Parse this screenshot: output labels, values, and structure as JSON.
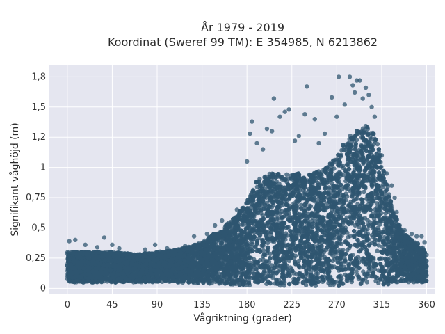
{
  "chart_data": {
    "type": "scatter",
    "title_line1": "År 1979 - 2019",
    "title_line2": "Koordinat (Sweref 99 TM): E 354985, N 6213862",
    "xlabel": "Vågriktning (grader)",
    "ylabel": "Signifikant våghöjd (m)",
    "xlim": [
      -18,
      368
    ],
    "ylim": [
      -0.05,
      1.85
    ],
    "x_ticks": [
      0,
      45,
      90,
      135,
      180,
      225,
      270,
      315,
      360
    ],
    "x_tick_labels": [
      "0",
      "45",
      "90",
      "135",
      "180",
      "225",
      "270",
      "315",
      "360"
    ],
    "y_ticks": [
      0,
      0.25,
      0.5,
      0.75,
      1.0,
      1.25,
      1.5,
      1.75
    ],
    "y_tick_labels": [
      "0",
      "0,25",
      "0,5",
      "0,75",
      "1",
      "1,2",
      "1,5",
      "1,8"
    ],
    "grid": true,
    "marker_color": "#2f5670",
    "background_color": "#e5e6f0",
    "envelope": {
      "x": [
        0,
        20,
        45,
        70,
        90,
        110,
        135,
        155,
        170,
        180,
        190,
        200,
        220,
        245,
        260,
        270,
        280,
        290,
        295,
        300,
        310,
        318,
        325,
        335,
        345,
        355,
        360
      ],
      "ymax": [
        0.3,
        0.3,
        0.3,
        0.28,
        0.3,
        0.32,
        0.38,
        0.5,
        0.6,
        0.72,
        0.9,
        0.95,
        0.95,
        0.95,
        1.0,
        1.1,
        1.25,
        1.3,
        1.32,
        1.35,
        1.25,
        0.95,
        0.7,
        0.48,
        0.4,
        0.35,
        0.3
      ],
      "ymin": [
        0.05,
        0.05,
        0.05,
        0.05,
        0.05,
        0.05,
        0.04,
        0.03,
        0.02,
        0.02,
        0.02,
        0.02,
        0.02,
        0.02,
        0.02,
        0.02,
        0.02,
        0.02,
        0.02,
        0.02,
        0.02,
        0.03,
        0.04,
        0.05,
        0.05,
        0.05,
        0.05
      ]
    },
    "outliers": [
      {
        "x": 2,
        "y": 0.39
      },
      {
        "x": 8,
        "y": 0.4
      },
      {
        "x": 18,
        "y": 0.36
      },
      {
        "x": 30,
        "y": 0.34
      },
      {
        "x": 37,
        "y": 0.42
      },
      {
        "x": 45,
        "y": 0.36
      },
      {
        "x": 52,
        "y": 0.33
      },
      {
        "x": 78,
        "y": 0.32
      },
      {
        "x": 88,
        "y": 0.36
      },
      {
        "x": 100,
        "y": 0.33
      },
      {
        "x": 118,
        "y": 0.35
      },
      {
        "x": 127,
        "y": 0.43
      },
      {
        "x": 140,
        "y": 0.45
      },
      {
        "x": 148,
        "y": 0.52
      },
      {
        "x": 155,
        "y": 0.56
      },
      {
        "x": 170,
        "y": 0.65
      },
      {
        "x": 180,
        "y": 1.05
      },
      {
        "x": 183,
        "y": 1.28
      },
      {
        "x": 185,
        "y": 1.38
      },
      {
        "x": 190,
        "y": 1.2
      },
      {
        "x": 196,
        "y": 1.15
      },
      {
        "x": 200,
        "y": 1.32
      },
      {
        "x": 205,
        "y": 1.3
      },
      {
        "x": 207,
        "y": 1.57
      },
      {
        "x": 213,
        "y": 1.42
      },
      {
        "x": 218,
        "y": 1.46
      },
      {
        "x": 222,
        "y": 1.48
      },
      {
        "x": 228,
        "y": 1.22
      },
      {
        "x": 232,
        "y": 1.26
      },
      {
        "x": 238,
        "y": 1.44
      },
      {
        "x": 240,
        "y": 1.67
      },
      {
        "x": 248,
        "y": 1.4
      },
      {
        "x": 252,
        "y": 1.2
      },
      {
        "x": 258,
        "y": 1.28
      },
      {
        "x": 265,
        "y": 1.58
      },
      {
        "x": 270,
        "y": 1.42
      },
      {
        "x": 272,
        "y": 1.75
      },
      {
        "x": 278,
        "y": 1.52
      },
      {
        "x": 283,
        "y": 1.75
      },
      {
        "x": 286,
        "y": 1.68
      },
      {
        "x": 288,
        "y": 1.62
      },
      {
        "x": 290,
        "y": 1.72
      },
      {
        "x": 293,
        "y": 1.72
      },
      {
        "x": 296,
        "y": 1.57
      },
      {
        "x": 299,
        "y": 1.66
      },
      {
        "x": 302,
        "y": 1.6
      },
      {
        "x": 305,
        "y": 1.5
      },
      {
        "x": 308,
        "y": 1.42
      },
      {
        "x": 315,
        "y": 1.1
      },
      {
        "x": 320,
        "y": 0.95
      },
      {
        "x": 325,
        "y": 0.85
      },
      {
        "x": 328,
        "y": 0.75
      },
      {
        "x": 330,
        "y": 0.63
      },
      {
        "x": 333,
        "y": 0.52
      },
      {
        "x": 338,
        "y": 0.48
      },
      {
        "x": 345,
        "y": 0.45
      },
      {
        "x": 350,
        "y": 0.43
      },
      {
        "x": 355,
        "y": 0.43
      },
      {
        "x": 358,
        "y": 0.38
      }
    ]
  }
}
